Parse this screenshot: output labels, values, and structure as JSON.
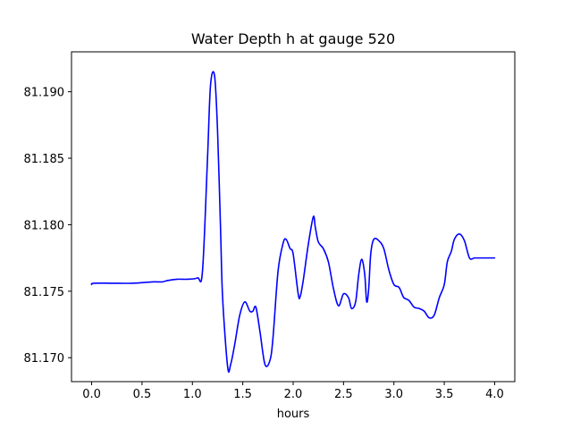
{
  "chart_data": {
    "type": "line",
    "title": "Water Depth h at gauge 520",
    "xlabel": "hours",
    "ylabel": "",
    "xlim": [
      -0.2,
      4.2
    ],
    "ylim": [
      81.1682,
      81.193
    ],
    "xticks": [
      0.0,
      0.5,
      1.0,
      1.5,
      2.0,
      2.5,
      3.0,
      3.5,
      4.0
    ],
    "xtick_labels": [
      "0.0",
      "0.5",
      "1.0",
      "1.5",
      "2.0",
      "2.5",
      "3.0",
      "3.5",
      "4.0"
    ],
    "yticks": [
      81.17,
      81.175,
      81.18,
      81.185,
      81.19
    ],
    "ytick_labels": [
      "81.170",
      "81.175",
      "81.180",
      "81.185",
      "81.190"
    ],
    "grid": false,
    "color": "#0000ff",
    "series": [
      {
        "x": [
          0.0,
          0.02,
          0.2,
          0.4,
          0.6,
          0.7,
          0.75,
          0.85,
          0.95,
          1.05,
          1.1,
          1.15,
          1.18,
          1.22,
          1.25,
          1.28,
          1.3,
          1.35,
          1.38,
          1.42,
          1.47,
          1.52,
          1.57,
          1.6,
          1.63,
          1.67,
          1.72,
          1.77,
          1.8,
          1.85,
          1.9,
          1.93,
          1.97,
          2.0,
          2.05,
          2.07,
          2.1,
          2.15,
          2.2,
          2.22,
          2.25,
          2.3,
          2.35,
          2.4,
          2.45,
          2.5,
          2.55,
          2.58,
          2.62,
          2.65,
          2.68,
          2.71,
          2.73,
          2.75,
          2.77,
          2.8,
          2.85,
          2.9,
          2.95,
          3.0,
          3.05,
          3.08,
          3.1,
          3.15,
          3.2,
          3.25,
          3.3,
          3.35,
          3.4,
          3.45,
          3.5,
          3.53,
          3.57,
          3.6,
          3.65,
          3.7,
          3.75,
          3.8,
          3.85,
          3.9,
          3.95,
          4.0
        ],
        "y": [
          81.1755,
          81.1756,
          81.1756,
          81.1756,
          81.1757,
          81.1757,
          81.1758,
          81.1759,
          81.1759,
          81.176,
          81.1765,
          81.185,
          81.1905,
          81.1912,
          81.187,
          81.1795,
          81.1745,
          81.1693,
          81.1695,
          81.171,
          81.1732,
          81.1742,
          81.1735,
          81.1735,
          81.1738,
          81.172,
          81.1695,
          81.1698,
          81.1715,
          81.1765,
          81.1786,
          81.1789,
          81.1782,
          81.1778,
          81.1748,
          81.1746,
          81.1758,
          81.1785,
          81.1806,
          81.1798,
          81.1787,
          81.1782,
          81.1772,
          81.1752,
          81.1739,
          81.1748,
          81.1745,
          81.1737,
          81.1742,
          81.1762,
          81.1774,
          81.1763,
          81.1742,
          81.1752,
          81.1778,
          81.1789,
          81.1788,
          81.1782,
          81.1766,
          81.1755,
          81.1753,
          81.1748,
          81.1745,
          81.1743,
          81.1738,
          81.1737,
          81.1735,
          81.173,
          81.1732,
          81.1745,
          81.1755,
          81.1772,
          81.178,
          81.1789,
          81.1793,
          81.1788,
          81.1775,
          81.1775,
          81.1775,
          81.1775,
          81.1775,
          81.1775
        ]
      }
    ]
  }
}
